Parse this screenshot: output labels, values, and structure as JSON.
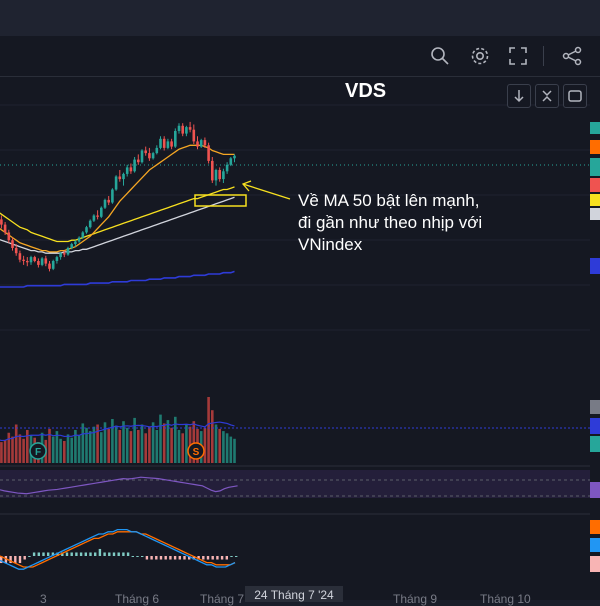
{
  "symbol": "VDS",
  "annotation": [
    "Về MA 50 bật lên mạnh,",
    "đi gần như theo nhịp với",
    "VNindex"
  ],
  "toolbar": {
    "icons": [
      "search-chart-icon",
      "gear-icon",
      "fullscreen-icon",
      "share-icon"
    ]
  },
  "chart_controls": [
    "arrow-down-icon",
    "collapse-icon",
    "maximize-icon"
  ],
  "x_axis": {
    "labels": [
      "3",
      "Tháng 6",
      "Tháng 7",
      "Tháng 9",
      "Tháng 10"
    ],
    "crosshair_label": "24 Tháng 7 '24"
  },
  "markers": [
    "F",
    "S"
  ],
  "colors": {
    "up": "#26a69a",
    "down": "#ef5350",
    "ma20": "#f5a623",
    "ma50": "#f7e01f",
    "ma100": "#d1d4dc",
    "ma200": "#2e3bd8",
    "rsi": "#7e57c2",
    "macd": "#2196f3",
    "signal": "#ff6d00",
    "annotation": "#f7e01f"
  },
  "chart_data": {
    "type": "candlestick",
    "title": "VDS",
    "ohlc": [
      [
        74,
        75,
        66,
        68
      ],
      [
        68,
        69,
        60,
        62
      ],
      [
        62,
        65,
        55,
        58
      ],
      [
        58,
        60,
        50,
        52
      ],
      [
        52,
        54,
        44,
        46
      ],
      [
        46,
        48,
        38,
        40
      ],
      [
        40,
        43,
        34,
        36
      ],
      [
        36,
        38,
        29,
        31
      ],
      [
        31,
        34,
        27,
        30
      ],
      [
        30,
        33,
        26,
        29
      ],
      [
        29,
        34,
        27,
        33
      ],
      [
        33,
        34,
        29,
        30
      ],
      [
        30,
        32,
        25,
        27
      ],
      [
        27,
        33,
        26,
        32
      ],
      [
        32,
        34,
        26,
        28
      ],
      [
        28,
        30,
        22,
        24
      ],
      [
        24,
        31,
        23,
        30
      ],
      [
        30,
        34,
        28,
        33
      ],
      [
        33,
        37,
        31,
        36
      ],
      [
        36,
        38,
        33,
        35
      ],
      [
        35,
        41,
        34,
        40
      ],
      [
        40,
        44,
        39,
        43
      ],
      [
        43,
        46,
        41,
        45
      ],
      [
        45,
        49,
        44,
        48
      ],
      [
        48,
        53,
        47,
        52
      ],
      [
        52,
        57,
        51,
        56
      ],
      [
        56,
        62,
        55,
        61
      ],
      [
        61,
        66,
        60,
        65
      ],
      [
        65,
        69,
        62,
        64
      ],
      [
        64,
        72,
        63,
        71
      ],
      [
        71,
        78,
        70,
        77
      ],
      [
        77,
        80,
        73,
        75
      ],
      [
        75,
        86,
        74,
        85
      ],
      [
        85,
        96,
        84,
        95
      ],
      [
        95,
        100,
        91,
        93
      ],
      [
        93,
        98,
        88,
        97
      ],
      [
        97,
        104,
        95,
        102
      ],
      [
        102,
        105,
        97,
        99
      ],
      [
        99,
        110,
        98,
        108
      ],
      [
        108,
        112,
        104,
        106
      ],
      [
        106,
        116,
        105,
        115
      ],
      [
        115,
        118,
        111,
        113
      ],
      [
        113,
        117,
        107,
        109
      ],
      [
        109,
        114,
        108,
        113
      ],
      [
        113,
        119,
        112,
        117
      ],
      [
        117,
        126,
        116,
        124
      ],
      [
        124,
        126,
        115,
        117
      ],
      [
        117,
        124,
        116,
        122
      ],
      [
        122,
        124,
        116,
        118
      ],
      [
        118,
        132,
        117,
        130
      ],
      [
        130,
        136,
        128,
        134
      ],
      [
        134,
        136,
        126,
        128
      ],
      [
        128,
        134,
        126,
        133
      ],
      [
        133,
        137,
        129,
        131
      ],
      [
        131,
        135,
        120,
        122
      ],
      [
        122,
        126,
        116,
        118
      ],
      [
        118,
        124,
        117,
        123
      ],
      [
        123,
        125,
        117,
        119
      ],
      [
        119,
        121,
        105,
        107
      ],
      [
        107,
        110,
        90,
        92
      ],
      [
        92,
        101,
        88,
        100
      ],
      [
        100,
        102,
        91,
        93
      ],
      [
        93,
        101,
        90,
        99
      ],
      [
        99,
        106,
        97,
        104
      ],
      [
        104,
        110,
        103,
        109
      ],
      [
        109,
        112,
        106,
        111
      ]
    ],
    "ma20": [
      58,
      56,
      54,
      52,
      50,
      48,
      46,
      44,
      43,
      42,
      41,
      40,
      39,
      38,
      38,
      37,
      37,
      37,
      38,
      38,
      39,
      40,
      41,
      43,
      45,
      47,
      49,
      52,
      55,
      58,
      61,
      64,
      68,
      72,
      76,
      79,
      82,
      85,
      88,
      91,
      94,
      97,
      100,
      102,
      104,
      106,
      108,
      110,
      112,
      114,
      116,
      117,
      118,
      119,
      119,
      119,
      119,
      118,
      117,
      115,
      114,
      113,
      112,
      112,
      112,
      112
    ],
    "ma50": [
      70,
      68,
      66,
      64,
      62,
      60,
      58,
      56,
      55,
      54,
      52,
      51,
      50,
      49,
      48,
      47,
      46,
      45,
      45,
      45,
      45,
      46,
      46,
      47,
      48,
      49,
      50,
      51,
      52,
      53,
      54,
      55,
      56,
      57,
      58,
      59,
      60,
      61,
      62,
      63,
      64,
      65,
      66,
      67,
      68,
      69,
      70,
      71,
      72,
      73,
      74,
      75,
      76,
      77,
      78,
      78,
      79,
      80,
      81,
      82,
      83,
      84,
      85,
      85,
      86,
      87
    ],
    "ma100": [
      48,
      47,
      46,
      45,
      44,
      43,
      42,
      41,
      40,
      39,
      38,
      38,
      37,
      37,
      36,
      36,
      36,
      36,
      36,
      37,
      37,
      37,
      38,
      38,
      39,
      39,
      40,
      41,
      42,
      43,
      44,
      45,
      46,
      47,
      48,
      49,
      50,
      51,
      52,
      53,
      54,
      55,
      56,
      57,
      58,
      59,
      60,
      61,
      62,
      63,
      64,
      65,
      66,
      67,
      68,
      69,
      70,
      71,
      72,
      73,
      74,
      75,
      76,
      77,
      78,
      79
    ],
    "ma200": [
      10,
      10,
      10,
      10,
      10,
      10,
      10,
      10,
      10,
      11,
      11,
      11,
      11,
      11,
      11,
      11,
      11,
      11,
      11,
      12,
      12,
      12,
      12,
      12,
      12,
      12,
      13,
      13,
      13,
      13,
      13,
      13,
      14,
      14,
      14,
      14,
      14,
      15,
      15,
      15,
      15,
      15,
      16,
      16,
      16,
      16,
      17,
      17,
      17,
      17,
      18,
      18,
      18,
      18,
      19,
      19,
      19,
      19,
      20,
      20,
      20,
      20,
      21,
      21,
      21,
      22
    ],
    "volume": [
      40,
      45,
      38,
      42,
      55,
      48,
      70,
      52,
      44,
      60,
      50,
      46,
      38,
      55,
      42,
      62,
      48,
      58,
      44,
      40,
      52,
      46,
      60,
      50,
      72,
      64,
      58,
      66,
      70,
      56,
      74,
      62,
      80,
      68,
      60,
      76,
      64,
      58,
      82,
      60,
      70,
      54,
      66,
      74,
      60,
      88,
      72,
      78,
      64,
      84,
      60,
      54,
      70,
      66,
      76,
      62,
      58,
      64,
      120,
      96,
      70,
      62,
      58,
      54,
      48,
      44
    ],
    "rsi": [
      45,
      42,
      40,
      38,
      36,
      35,
      34,
      36,
      38,
      40,
      42,
      44,
      45,
      46,
      48,
      50,
      52,
      54,
      56,
      58,
      60,
      62,
      64,
      66,
      68,
      70,
      72,
      74,
      76,
      75,
      76,
      78,
      80,
      79,
      78,
      77,
      76,
      74,
      72,
      70,
      68,
      66,
      64,
      62,
      60,
      58,
      56,
      50,
      44,
      40,
      42,
      48,
      52,
      54,
      56
    ],
    "macd": [
      -2,
      -3,
      -4,
      -5,
      -6,
      -6,
      -5,
      -4,
      -3,
      -2,
      -1,
      0,
      1,
      2,
      3,
      4,
      5,
      6,
      7,
      8,
      9,
      10,
      10,
      11,
      11,
      12,
      12,
      12,
      11,
      11,
      10,
      9,
      8,
      7,
      6,
      5,
      4,
      3,
      2,
      1,
      0,
      -1,
      -2,
      -3,
      -4,
      -4,
      -5,
      -5,
      -5,
      -4,
      -3
    ],
    "signal": [
      0,
      -1,
      -2,
      -3,
      -4,
      -5,
      -5,
      -5,
      -4,
      -3,
      -2,
      -1,
      0,
      1,
      2,
      3,
      4,
      5,
      6,
      7,
      8,
      8,
      9,
      10,
      10,
      11,
      11,
      11,
      11,
      11,
      10,
      10,
      9,
      8,
      7,
      6,
      5,
      4,
      3,
      2,
      1,
      0,
      -1,
      -2,
      -3,
      -3,
      -4,
      -4,
      -4,
      -4,
      -3
    ],
    "hist": [
      -2,
      -2,
      -2,
      -2,
      -2,
      -1,
      0,
      1,
      1,
      1,
      1,
      1,
      1,
      1,
      1,
      1,
      1,
      1,
      1,
      1,
      1,
      2,
      1,
      1,
      1,
      1,
      1,
      1,
      0,
      0,
      0,
      -1,
      -1,
      -1,
      -1,
      -1,
      -1,
      -1,
      -1,
      -1,
      -1,
      -1,
      -1,
      -1,
      -1,
      -1,
      -1,
      -1,
      -1,
      0,
      0
    ]
  }
}
